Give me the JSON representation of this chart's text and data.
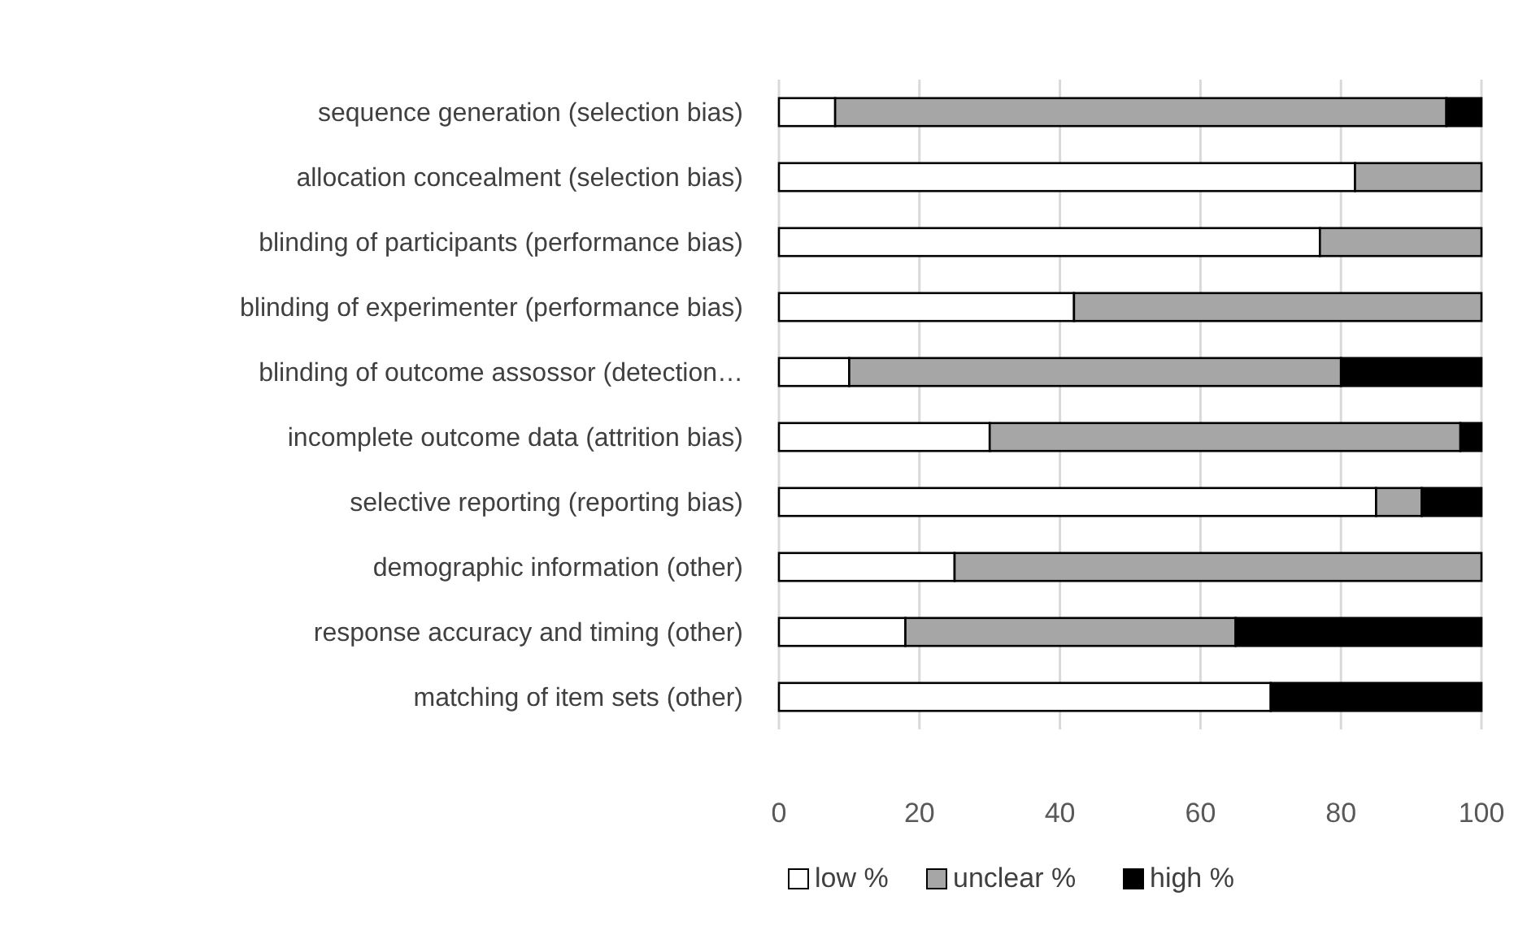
{
  "chart_data": {
    "type": "bar",
    "orientation": "horizontal",
    "stacked": true,
    "categories": [
      "sequence generation (selection bias)",
      "allocation concealment (selection bias)",
      "blinding of participants (performance bias)",
      "blinding of experimenter (performance bias)",
      "blinding of outcome assossor (detection…",
      "incomplete outcome data (attrition bias)",
      "selective reporting (reporting bias)",
      "demographic information (other)",
      "response accuracy and timing (other)",
      "matching of item sets (other)"
    ],
    "series": [
      {
        "name": "low %",
        "color": "#ffffff",
        "values": [
          8,
          82,
          77,
          42,
          10,
          30,
          85,
          25,
          18,
          70
        ]
      },
      {
        "name": "unclear %",
        "color": "#a6a6a6",
        "values": [
          87,
          18,
          23,
          58,
          70,
          67,
          6.5,
          75,
          47,
          0
        ]
      },
      {
        "name": "high %",
        "color": "#000000",
        "values": [
          5,
          0,
          0,
          0,
          20,
          3,
          8.5,
          0,
          35,
          30
        ]
      }
    ],
    "xlim": [
      0,
      100
    ],
    "xticks": [
      0,
      20,
      40,
      60,
      80,
      100
    ],
    "grid": "x",
    "legend": "bottom"
  }
}
